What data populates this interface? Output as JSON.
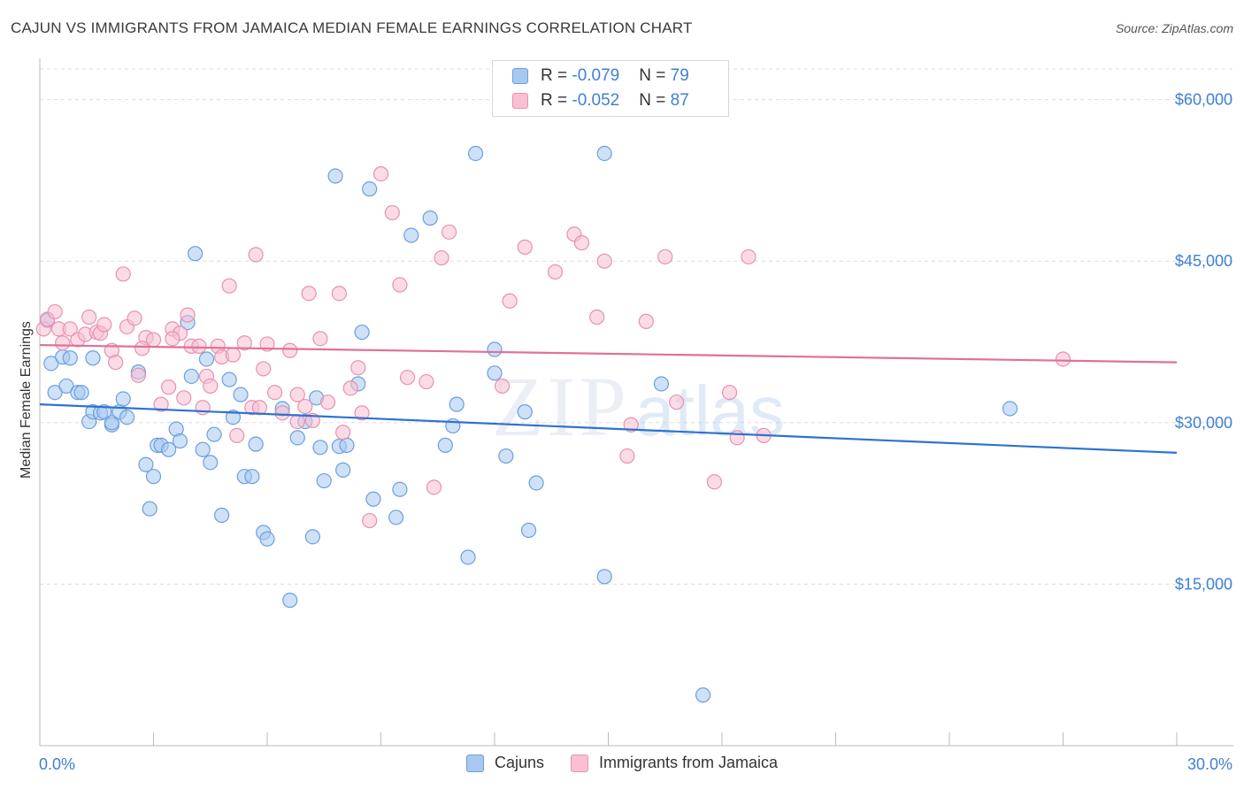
{
  "header": {
    "title": "CAJUN VS IMMIGRANTS FROM JAMAICA MEDIAN FEMALE EARNINGS CORRELATION CHART",
    "source": "Source: ZipAtlas.com"
  },
  "watermark": {
    "zip": "ZIP",
    "atlas": "atlas"
  },
  "legend": {
    "rows": [
      {
        "r_label": "R = ",
        "r_value": "-0.079",
        "n_label": "N = ",
        "n_value": "79",
        "color": "#a8c8f0",
        "border": "#6a9fe0"
      },
      {
        "r_label": "R = ",
        "r_value": "-0.052",
        "n_label": "N = ",
        "n_value": "87",
        "color": "#f8c0d2",
        "border": "#e890b0"
      }
    ]
  },
  "bottom_legend": {
    "items": [
      {
        "label": "Cajuns",
        "color": "#a8c8f0",
        "border": "#6a9fe0"
      },
      {
        "label": "Immigrants from Jamaica",
        "color": "#f8c0d2",
        "border": "#e890b0"
      }
    ]
  },
  "chart_data": {
    "type": "scatter",
    "title": "CAJUN VS IMMIGRANTS FROM JAMAICA MEDIAN FEMALE EARNINGS CORRELATION CHART",
    "xlabel": "",
    "ylabel": "Median Female Earnings",
    "xlim": [
      0,
      30
    ],
    "ylim": [
      0,
      63500
    ],
    "x_tick_labels": [
      "0.0%",
      "30.0%"
    ],
    "y_ticks": [
      15000,
      30000,
      45000,
      60000
    ],
    "y_tick_labels": [
      "$15,000",
      "$30,000",
      "$45,000",
      "$60,000"
    ],
    "grid": true,
    "legend_position": "top-center",
    "series": [
      {
        "name": "Cajuns",
        "color": "#6a9fe0",
        "fill": "#a8c8f0",
        "line_color": "#2e72d2",
        "trend": {
          "x": [
            0,
            30
          ],
          "y": [
            31700,
            27200
          ]
        },
        "points": [
          [
            0.2,
            39500
          ],
          [
            0.3,
            35500
          ],
          [
            0.4,
            32800
          ],
          [
            0.6,
            36100
          ],
          [
            0.7,
            33400
          ],
          [
            0.8,
            36000
          ],
          [
            1.0,
            32800
          ],
          [
            1.1,
            32800
          ],
          [
            1.3,
            30100
          ],
          [
            1.4,
            31000
          ],
          [
            1.4,
            36000
          ],
          [
            1.6,
            30900
          ],
          [
            1.7,
            31000
          ],
          [
            1.9,
            29800
          ],
          [
            1.9,
            30000
          ],
          [
            2.1,
            31000
          ],
          [
            2.2,
            32200
          ],
          [
            2.3,
            30500
          ],
          [
            2.6,
            34700
          ],
          [
            2.8,
            26100
          ],
          [
            2.9,
            22000
          ],
          [
            3.0,
            25000
          ],
          [
            3.1,
            27900
          ],
          [
            3.2,
            27900
          ],
          [
            3.4,
            27500
          ],
          [
            3.6,
            29400
          ],
          [
            3.7,
            28300
          ],
          [
            3.9,
            39300
          ],
          [
            4.0,
            34300
          ],
          [
            4.1,
            45700
          ],
          [
            4.3,
            27500
          ],
          [
            4.4,
            35900
          ],
          [
            4.5,
            26300
          ],
          [
            4.6,
            28900
          ],
          [
            4.8,
            21400
          ],
          [
            5.0,
            34000
          ],
          [
            5.1,
            30500
          ],
          [
            5.3,
            32600
          ],
          [
            5.4,
            25000
          ],
          [
            5.6,
            25000
          ],
          [
            5.7,
            28000
          ],
          [
            5.9,
            19800
          ],
          [
            6.0,
            19200
          ],
          [
            6.4,
            31300
          ],
          [
            6.6,
            13500
          ],
          [
            6.8,
            28600
          ],
          [
            7.0,
            30100
          ],
          [
            7.2,
            19400
          ],
          [
            7.4,
            27700
          ],
          [
            7.5,
            24600
          ],
          [
            7.9,
            27800
          ],
          [
            8.0,
            25600
          ],
          [
            8.1,
            27900
          ],
          [
            7.8,
            52900
          ],
          [
            8.4,
            33600
          ],
          [
            8.5,
            38400
          ],
          [
            8.7,
            51700
          ],
          [
            8.8,
            22900
          ],
          [
            9.4,
            21200
          ],
          [
            9.5,
            23800
          ],
          [
            9.8,
            47400
          ],
          [
            10.3,
            49000
          ],
          [
            10.7,
            27900
          ],
          [
            10.9,
            29700
          ],
          [
            11.0,
            31700
          ],
          [
            11.3,
            17500
          ],
          [
            11.5,
            55000
          ],
          [
            12.0,
            36800
          ],
          [
            12.0,
            34600
          ],
          [
            12.3,
            26900
          ],
          [
            12.8,
            31000
          ],
          [
            12.9,
            20000
          ],
          [
            14.9,
            55000
          ],
          [
            14.9,
            15700
          ],
          [
            16.4,
            33600
          ],
          [
            17.5,
            4700
          ],
          [
            25.6,
            31300
          ],
          [
            13.1,
            24400
          ],
          [
            7.3,
            32300
          ]
        ]
      },
      {
        "name": "Immigrants from Jamaica",
        "color": "#e890b0",
        "fill": "#f8c0d2",
        "line_color": "#e0709a",
        "trend": {
          "x": [
            0,
            30
          ],
          "y": [
            37200,
            35600
          ]
        },
        "points": [
          [
            0.1,
            38700
          ],
          [
            0.2,
            39600
          ],
          [
            0.4,
            40300
          ],
          [
            0.5,
            38700
          ],
          [
            0.6,
            37400
          ],
          [
            0.8,
            38700
          ],
          [
            1.0,
            37700
          ],
          [
            1.2,
            38200
          ],
          [
            1.3,
            39800
          ],
          [
            1.5,
            38400
          ],
          [
            1.6,
            38300
          ],
          [
            1.7,
            39100
          ],
          [
            1.9,
            36700
          ],
          [
            2.0,
            35600
          ],
          [
            2.2,
            43800
          ],
          [
            2.3,
            38900
          ],
          [
            2.5,
            39700
          ],
          [
            2.6,
            34400
          ],
          [
            2.8,
            37900
          ],
          [
            3.0,
            37700
          ],
          [
            3.2,
            31700
          ],
          [
            3.4,
            33300
          ],
          [
            3.5,
            38700
          ],
          [
            3.7,
            38300
          ],
          [
            3.8,
            32300
          ],
          [
            3.9,
            40000
          ],
          [
            4.0,
            37100
          ],
          [
            4.2,
            37100
          ],
          [
            4.3,
            31400
          ],
          [
            4.4,
            34300
          ],
          [
            4.5,
            33400
          ],
          [
            4.7,
            37100
          ],
          [
            4.8,
            36100
          ],
          [
            5.0,
            42700
          ],
          [
            5.1,
            36300
          ],
          [
            5.2,
            28800
          ],
          [
            5.4,
            37400
          ],
          [
            5.6,
            31400
          ],
          [
            5.7,
            45600
          ],
          [
            5.8,
            31400
          ],
          [
            5.9,
            35000
          ],
          [
            6.0,
            37300
          ],
          [
            6.2,
            32800
          ],
          [
            6.4,
            30900
          ],
          [
            6.6,
            36700
          ],
          [
            6.8,
            32600
          ],
          [
            7.0,
            31500
          ],
          [
            7.1,
            42000
          ],
          [
            7.2,
            30200
          ],
          [
            7.4,
            37800
          ],
          [
            7.6,
            31900
          ],
          [
            7.9,
            42000
          ],
          [
            8.0,
            29100
          ],
          [
            8.2,
            33200
          ],
          [
            8.4,
            35100
          ],
          [
            8.5,
            30900
          ],
          [
            8.7,
            20900
          ],
          [
            9.0,
            53100
          ],
          [
            9.3,
            49500
          ],
          [
            9.5,
            42800
          ],
          [
            9.7,
            34200
          ],
          [
            10.2,
            33800
          ],
          [
            10.4,
            24000
          ],
          [
            10.6,
            45300
          ],
          [
            10.8,
            47700
          ],
          [
            12.4,
            41300
          ],
          [
            12.8,
            46300
          ],
          [
            13.6,
            44000
          ],
          [
            14.1,
            47500
          ],
          [
            14.3,
            46700
          ],
          [
            14.7,
            39800
          ],
          [
            14.9,
            45000
          ],
          [
            15.6,
            29800
          ],
          [
            15.5,
            26900
          ],
          [
            16.0,
            39400
          ],
          [
            16.5,
            45400
          ],
          [
            16.8,
            31900
          ],
          [
            17.8,
            24500
          ],
          [
            18.2,
            32800
          ],
          [
            18.4,
            28600
          ],
          [
            18.7,
            45400
          ],
          [
            19.1,
            28800
          ],
          [
            27.0,
            35900
          ],
          [
            6.8,
            30100
          ],
          [
            3.5,
            37800
          ],
          [
            2.7,
            36900
          ],
          [
            12.2,
            33400
          ]
        ]
      }
    ]
  }
}
